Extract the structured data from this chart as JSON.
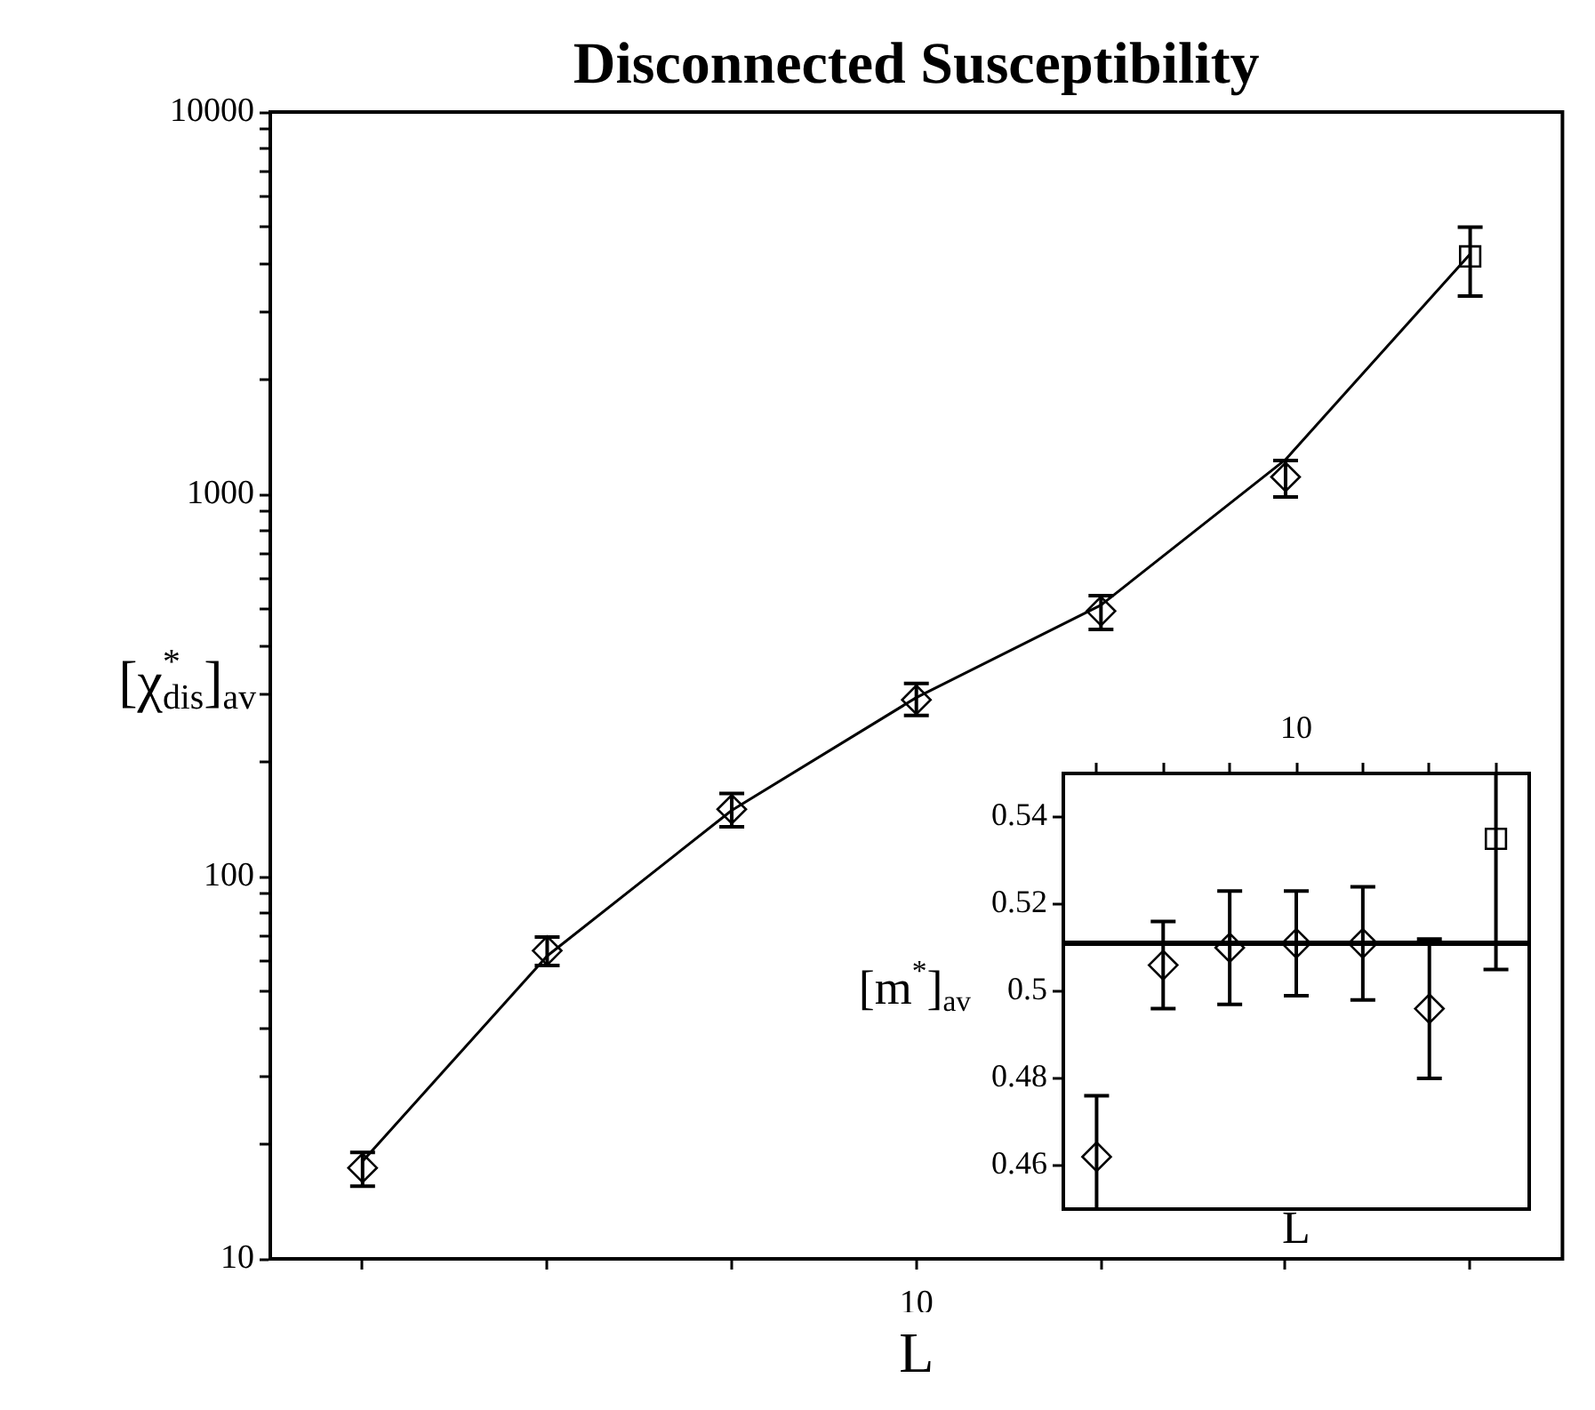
{
  "chart_data": [
    {
      "type": "scatter",
      "title": "Disconnected Susceptibility",
      "xlabel": "L",
      "ylabel": "[χ$^{*}$$_{dis}$]$_{av}$",
      "log": "y",
      "categories": [
        null,
        null,
        null,
        "10",
        null,
        null,
        null
      ],
      "ylim": [
        10,
        10000
      ],
      "yticks": [
        10,
        {
          "value": 20,
          "label": null
        },
        {
          "value": 30,
          "label": null
        },
        {
          "value": 40,
          "label": null
        },
        {
          "value": 50,
          "label": null
        },
        {
          "value": 60,
          "label": null
        },
        {
          "value": 70,
          "label": null
        },
        {
          "value": 80,
          "label": null
        },
        {
          "value": 90,
          "label": null
        },
        100,
        {
          "value": 200,
          "label": null
        },
        {
          "value": 300,
          "label": null
        },
        {
          "value": 400,
          "label": null
        },
        {
          "value": 500,
          "label": null
        },
        {
          "value": 600,
          "label": null
        },
        {
          "value": 700,
          "label": null
        },
        {
          "value": 800,
          "label": null
        },
        {
          "value": 900,
          "label": null
        },
        1000,
        {
          "value": 2000,
          "label": null
        },
        {
          "value": 3000,
          "label": null
        },
        {
          "value": 4000,
          "label": null
        },
        {
          "value": 5000,
          "label": null
        },
        {
          "value": 6000,
          "label": null
        },
        {
          "value": 7000,
          "label": null
        },
        {
          "value": 8000,
          "label": null
        },
        {
          "value": 9000,
          "label": null
        },
        10000
      ],
      "series": [
        {
          "type": "scatter",
          "marker": "diamond",
          "color": "#000000",
          "values": [
            17.3,
            64,
            150,
            290,
            495,
            1110,
            null
          ],
          "errors": [
            [
              15.5,
              19
            ],
            [
              58.5,
              69.5
            ],
            [
              135,
              165
            ],
            [
              264,
              320
            ],
            [
              443,
              543
            ],
            [
              984,
              1225
            ],
            null
          ]
        },
        {
          "type": "scatter",
          "marker": "square",
          "color": "#000000",
          "values": [
            null,
            null,
            null,
            null,
            null,
            null,
            4190
          ],
          "errors": [
            null,
            null,
            null,
            null,
            null,
            null,
            [
              3300,
              5000
            ]
          ]
        },
        {
          "type": "line",
          "marker": "none",
          "line_style": "solid",
          "color": "#000000",
          "values": [
            18,
            62,
            149,
            294,
            513,
            1233,
            4250
          ]
        }
      ]
    },
    {
      "type": "scatter",
      "xlabel": "L",
      "ylabel": "[m$^{*}$]$_{av}$",
      "categories": [
        null,
        null,
        null,
        "10",
        null,
        null,
        null
      ],
      "ylim": [
        0.45,
        0.55
      ],
      "yticks": [
        0.46,
        0.48,
        0.5,
        0.52,
        0.54
      ],
      "ref_lines": [
        {
          "axis": "y",
          "value": 0.511
        }
      ],
      "series": [
        {
          "type": "scatter",
          "marker": "diamond",
          "color": "#000000",
          "values": [
            0.462,
            0.506,
            0.51,
            0.511,
            0.511,
            0.496,
            null
          ],
          "errors": [
            [
              0.45,
              0.476
            ],
            [
              0.496,
              0.516
            ],
            [
              0.497,
              0.523
            ],
            [
              0.499,
              0.523
            ],
            [
              0.498,
              0.524
            ],
            [
              0.48,
              0.512
            ],
            null
          ]
        },
        {
          "type": "scatter",
          "marker": "square",
          "color": "#000000",
          "values": [
            null,
            null,
            null,
            null,
            null,
            null,
            0.535
          ],
          "errors": [
            null,
            null,
            null,
            null,
            null,
            null,
            [
              0.505,
              0.55
            ]
          ]
        }
      ]
    }
  ]
}
